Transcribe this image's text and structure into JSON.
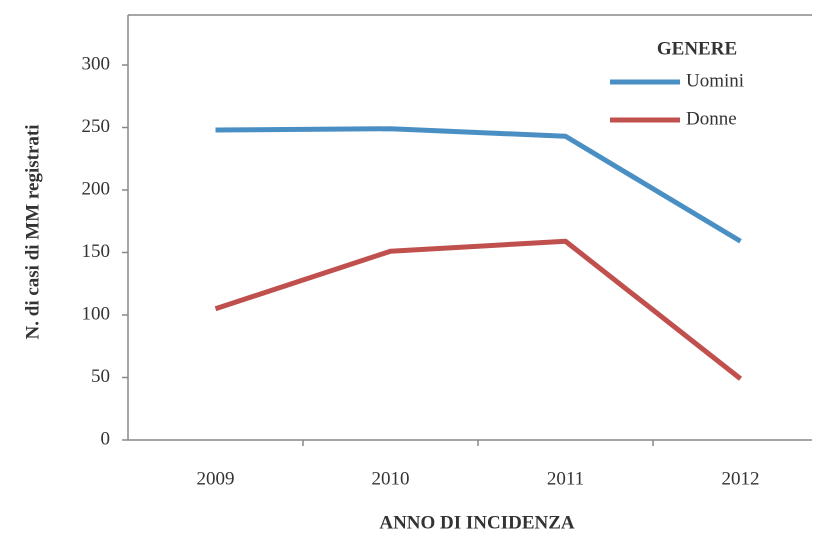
{
  "chart_data": {
    "type": "line",
    "x_label": "ANNO DI INCIDENZA",
    "y_label": "N. di casi di MM registrati",
    "legend_title": "GENERE",
    "legend_position": "upper right",
    "categories": [
      "2009",
      "2010",
      "2011",
      "2012"
    ],
    "series": [
      {
        "name": "Uomini",
        "color": "#4a8fc4",
        "values": [
          248,
          249,
          243,
          159
        ]
      },
      {
        "name": "Donne",
        "color": "#c0504d",
        "values": [
          105,
          151,
          159,
          49
        ]
      }
    ],
    "ylim": [
      0,
      340
    ],
    "yticks": [
      0,
      50,
      100,
      150,
      200,
      250,
      300
    ]
  }
}
